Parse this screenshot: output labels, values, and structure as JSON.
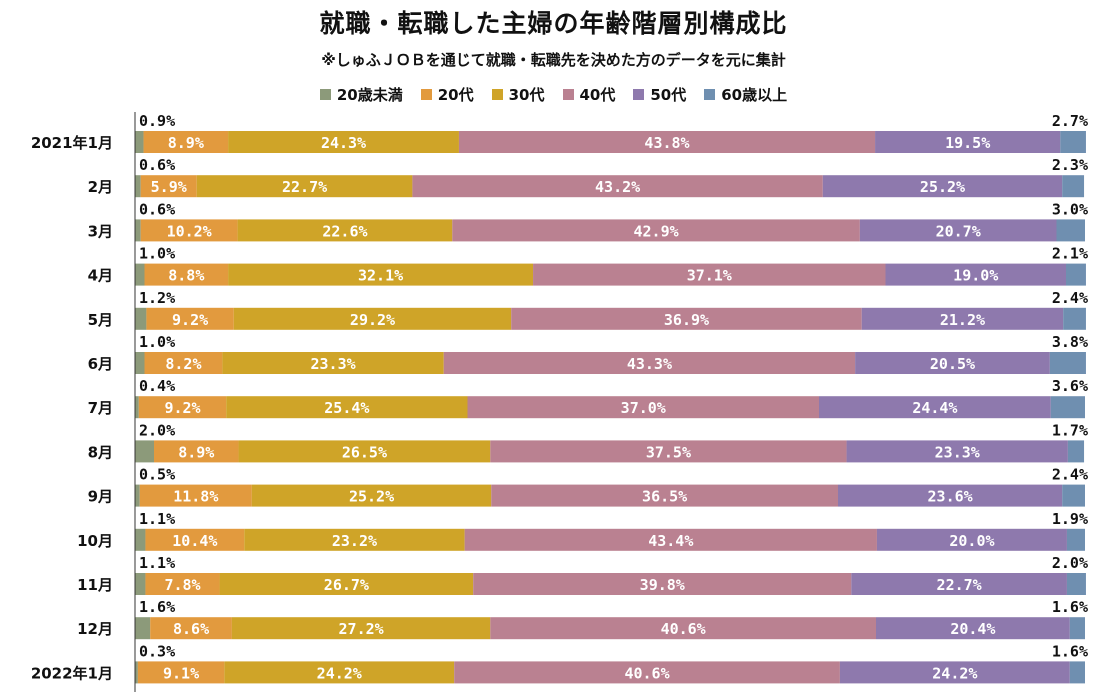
{
  "chart_data": {
    "type": "bar",
    "orientation": "horizontal-stacked-100",
    "title": "就職・転職した主婦の年齢階層別構成比",
    "subtitle": "※しゅふＪＯＢを通じて就職・転職先を決めた方のデータを元に集計",
    "legend_position": "top",
    "categories": [
      "2021年1月",
      "2月",
      "3月",
      "4月",
      "5月",
      "6月",
      "7月",
      "8月",
      "9月",
      "10月",
      "11月",
      "12月",
      "2022年1月"
    ],
    "series": [
      {
        "name": "20歳未満",
        "color": "#8c9a7a",
        "values": [
          0.9,
          0.6,
          0.6,
          1.0,
          1.2,
          1.0,
          0.4,
          2.0,
          0.5,
          1.1,
          1.1,
          1.6,
          0.3
        ]
      },
      {
        "name": "20代",
        "color": "#e29a3e",
        "values": [
          8.9,
          5.9,
          10.2,
          8.8,
          9.2,
          8.2,
          9.2,
          8.9,
          11.8,
          10.4,
          7.8,
          8.6,
          9.1
        ]
      },
      {
        "name": "30代",
        "color": "#cfa428",
        "values": [
          24.3,
          22.7,
          22.6,
          32.1,
          29.2,
          23.3,
          25.4,
          26.5,
          25.2,
          23.2,
          26.7,
          27.2,
          24.2
        ]
      },
      {
        "name": "40代",
        "color": "#ba8191",
        "values": [
          43.8,
          43.2,
          42.9,
          37.1,
          36.9,
          43.3,
          37.0,
          37.5,
          36.5,
          43.4,
          39.8,
          40.6,
          40.6
        ]
      },
      {
        "name": "50代",
        "color": "#8e79ad",
        "values": [
          19.5,
          25.2,
          20.7,
          19.0,
          21.2,
          20.5,
          24.4,
          23.3,
          23.6,
          20.0,
          22.7,
          20.4,
          24.2
        ]
      },
      {
        "name": "60歳以上",
        "color": "#6f8fb0",
        "values": [
          2.7,
          2.3,
          3.0,
          2.1,
          2.4,
          3.8,
          3.6,
          1.7,
          2.4,
          1.9,
          2.0,
          1.6,
          1.6
        ]
      }
    ],
    "xlim": [
      0,
      100
    ]
  }
}
